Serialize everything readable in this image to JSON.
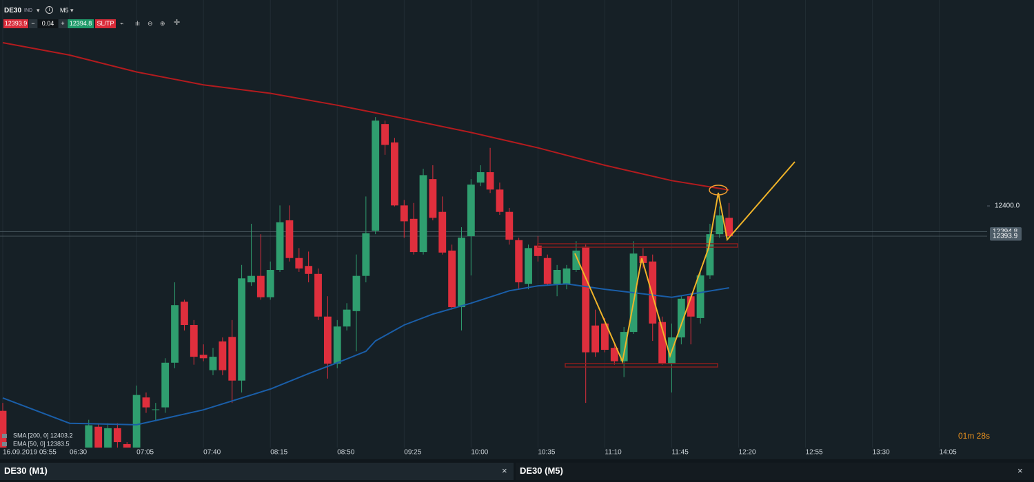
{
  "toolbar": {
    "symbol": "DE30",
    "market": "IND",
    "timeframe": "M5",
    "sell": "12393.9",
    "minus": "−",
    "volume": "0.04",
    "plus": "+",
    "buy": "12394.8",
    "sltp": "SL/TP"
  },
  "chart_data": {
    "type": "candlestick",
    "x": [
      "05:55",
      "06:40",
      "06:45",
      "06:50",
      "06:55",
      "07:00",
      "07:05",
      "07:10",
      "07:15",
      "07:20",
      "07:25",
      "07:30",
      "07:35",
      "07:40",
      "07:45",
      "07:50",
      "07:55",
      "08:00",
      "08:05",
      "08:10",
      "08:15",
      "08:20",
      "08:25",
      "08:30",
      "08:35",
      "08:40",
      "08:45",
      "08:50",
      "08:55",
      "09:00",
      "09:05",
      "09:10",
      "09:15",
      "09:20",
      "09:25",
      "09:30",
      "09:35",
      "09:40",
      "09:45",
      "09:50",
      "09:55",
      "10:00",
      "10:05",
      "10:10",
      "10:15",
      "10:20",
      "10:25",
      "10:30",
      "10:35",
      "10:40",
      "10:45",
      "10:50",
      "10:55",
      "11:00",
      "11:05",
      "11:10",
      "11:15",
      "11:20",
      "11:25",
      "11:30",
      "11:35",
      "11:40",
      "11:45",
      "11:50",
      "11:55",
      "12:00",
      "12:05",
      "12:10",
      "12:15"
    ],
    "open": [
      12358.7,
      12351.3,
      12355.5,
      12351.3,
      12355.2,
      12352.0,
      12351.3,
      12361.4,
      12358.9,
      12359.4,
      12368.4,
      12380.7,
      12376.0,
      12370.0,
      12366.9,
      12372.7,
      12373.6,
      12364.8,
      12384.6,
      12385.9,
      12381.6,
      12387.1,
      12397.1,
      12389.5,
      12387.9,
      12386.3,
      12377.7,
      12368.2,
      12375.7,
      12378.8,
      12385.9,
      12395.0,
      12416.5,
      12412.8,
      12400.1,
      12397.4,
      12390.7,
      12405.4,
      12398.8,
      12391.0,
      12379.6,
      12393.9,
      12404.7,
      12406.8,
      12403.3,
      12398.8,
      12393.1,
      12384.3,
      12392.0,
      12389.5,
      12384.3,
      12384.3,
      12387.1,
      12391.8,
      12375.9,
      12376.3,
      12371.4,
      12368.7,
      12374.6,
      12389.9,
      12388.8,
      12376.6,
      12368.2,
      12373.5,
      12381.8,
      12377.4,
      12386.0,
      12394.3,
      12397.6
    ],
    "high": [
      12360.3,
      12356.9,
      12356.2,
      12356.2,
      12356.2,
      12352.4,
      12363.8,
      12362.4,
      12360.3,
      12369.3,
      12384.6,
      12381.1,
      12377.0,
      12372.1,
      12371.4,
      12373.5,
      12377.0,
      12388.1,
      12396.4,
      12394.3,
      12388.8,
      12400.1,
      12400.1,
      12391.5,
      12390.8,
      12387.4,
      12381.8,
      12377.0,
      12380.4,
      12390.2,
      12401.9,
      12417.9,
      12417.2,
      12413.7,
      12401.2,
      12400.6,
      12407.5,
      12408.2,
      12401.9,
      12392.2,
      12395.7,
      12405.4,
      12408.2,
      12411.7,
      12404.7,
      12399.6,
      12393.6,
      12392.2,
      12393.9,
      12390.2,
      12388.1,
      12388.1,
      12392.9,
      12392.2,
      12379.1,
      12377.4,
      12372.1,
      12375.6,
      12392.9,
      12391.5,
      12390.2,
      12377.7,
      12376.3,
      12381.8,
      12382.5,
      12386.7,
      12396.4,
      12399.9,
      12400.6
    ],
    "low": [
      12351.3,
      12351.3,
      12351.3,
      12351.3,
      12351.3,
      12351.3,
      12351.3,
      12358.3,
      12356.6,
      12358.3,
      12367.3,
      12374.9,
      12368.0,
      12368.7,
      12365.9,
      12365.9,
      12360.3,
      12362.4,
      12383.9,
      12381.1,
      12381.1,
      12386.7,
      12388.8,
      12386.7,
      12384.6,
      12377.0,
      12365.2,
      12367.3,
      12374.9,
      12370.7,
      12384.6,
      12394.3,
      12410.3,
      12399.9,
      12393.6,
      12390.2,
      12390.2,
      12397.1,
      12390.2,
      12379.1,
      12374.9,
      12386.0,
      12404.0,
      12402.6,
      12398.2,
      12392.2,
      12383.2,
      12383.2,
      12388.8,
      12383.9,
      12381.8,
      12383.2,
      12386.7,
      12360.3,
      12369.6,
      12370.5,
      12368.0,
      12365.5,
      12374.2,
      12387.4,
      12372.8,
      12368.0,
      12362.4,
      12372.1,
      12372.1,
      12376.3,
      12385.3,
      12393.6,
      12393.6
    ],
    "close": [
      12351.3,
      12355.8,
      12351.3,
      12355.2,
      12352.4,
      12351.3,
      12361.9,
      12359.4,
      12359.0,
      12368.4,
      12380.0,
      12376.0,
      12369.6,
      12369.3,
      12369.6,
      12366.9,
      12364.8,
      12385.4,
      12385.9,
      12381.6,
      12387.1,
      12396.7,
      12389.5,
      12387.4,
      12386.3,
      12377.7,
      12368.2,
      12375.7,
      12379.1,
      12385.9,
      12394.5,
      12417.2,
      12412.3,
      12400.1,
      12396.9,
      12390.7,
      12406.2,
      12397.6,
      12390.6,
      12379.6,
      12393.6,
      12404.3,
      12406.8,
      12403.3,
      12398.8,
      12393.2,
      12384.6,
      12391.5,
      12389.9,
      12384.3,
      12387.1,
      12387.4,
      12391.0,
      12370.5,
      12370.5,
      12371.0,
      12368.7,
      12374.6,
      12390.4,
      12388.5,
      12376.3,
      12368.2,
      12373.5,
      12381.3,
      12377.7,
      12386.0,
      12394.3,
      12398.1,
      12393.9
    ],
    "up_color": "#2f9e6f",
    "down_color": "#df2f3d",
    "xlim": [
      "05:55",
      "14:30"
    ],
    "xticks": [
      {
        "value": "05:55",
        "label": "16.09.2019 05:55"
      },
      "06:30",
      "07:05",
      "07:40",
      "08:15",
      "08:50",
      "09:25",
      "10:00",
      "10:35",
      "11:10",
      "11:45",
      "12:20",
      "12:55",
      "13:30",
      "14:05"
    ],
    "ylim": [
      12351.3,
      12441.5
    ],
    "yticks": [
      {
        "value": 12400,
        "label": "12400.0"
      }
    ],
    "price_lines": [
      12394.8,
      12393.9
    ],
    "grid": "x",
    "lines": [
      {
        "name": "SMA [200, 0] 12403.2",
        "color": "#b31b1e",
        "x": [
          "05:55",
          "06:30",
          "07:05",
          "07:40",
          "08:15",
          "08:50",
          "09:25",
          "10:00",
          "10:35",
          "11:10",
          "11:45",
          "12:15"
        ],
        "values": [
          12432.9,
          12430.4,
          12427.0,
          12424.4,
          12422.7,
          12420.3,
          12417.6,
          12414.8,
          12411.7,
          12408.2,
          12405.1,
          12403.2
        ]
      },
      {
        "name": "EMA [50, 0] 12383.5",
        "color": "#1a5ea8",
        "x": [
          "05:55",
          "06:30",
          "07:05",
          "07:40",
          "08:15",
          "08:35",
          "08:50",
          "09:05",
          "09:10",
          "09:25",
          "09:40",
          "10:00",
          "10:20",
          "10:35",
          "10:50",
          "11:10",
          "11:45",
          "12:15"
        ],
        "values": [
          12361.3,
          12356.2,
          12355.9,
          12358.9,
          12363.1,
          12366.2,
          12368.4,
          12370.7,
          12372.8,
          12376.0,
          12378.2,
          12380.4,
          12382.9,
          12383.9,
          12384.3,
          12383.2,
          12381.6,
          12383.5
        ]
      }
    ]
  },
  "countdown": "01m 28s",
  "tabs": [
    {
      "label": "DE30 (M1)",
      "close": "×"
    },
    {
      "label": "DE30 (M5)",
      "close": "×"
    }
  ]
}
